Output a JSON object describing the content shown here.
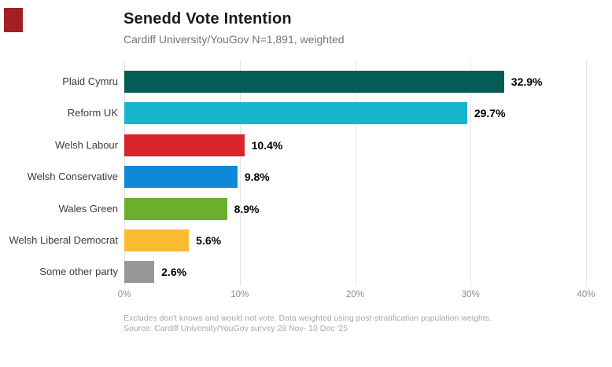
{
  "header": {
    "title": "Senedd Vote Intention",
    "subtitle": "Cardiff University/YouGov N=1,891, weighted"
  },
  "logo": {
    "name": "red-square-logo-mark",
    "color": "#A32022"
  },
  "chart_data": {
    "type": "bar",
    "orientation": "horizontal",
    "title": "Senedd Vote Intention",
    "subtitle": "Cardiff University/YouGov N=1,891, weighted",
    "categories": [
      "Plaid Cymru",
      "Reform UK",
      "Welsh Labour",
      "Welsh Conservative",
      "Wales Green",
      "Welsh Liberal Democrat",
      "Some other party"
    ],
    "values": [
      32.9,
      29.7,
      10.4,
      9.8,
      8.9,
      5.6,
      2.6
    ],
    "value_labels": [
      "32.9%",
      "29.7%",
      "10.4%",
      "9.8%",
      "8.9%",
      "5.6%",
      "2.6%"
    ],
    "bar_colors": [
      "#055C54",
      "#17B4CE",
      "#D8252B",
      "#0E89D7",
      "#6BB02D",
      "#FBBB32",
      "#979797"
    ],
    "x_axis": {
      "max": 40,
      "ticks": [
        0,
        10,
        20,
        30,
        40
      ],
      "tick_labels": [
        "0%",
        "10%",
        "20%",
        "30%",
        "40%"
      ]
    },
    "grid": "vertical-gridlines-on",
    "legend": "none",
    "xlabel": "",
    "ylabel": ""
  },
  "footer": {
    "line1": "Excludes don't knows and would not vote. Data weighted using post-stratification population weights.",
    "line2": "Source: Cardiff University/YouGov survey 28 Nov- 10 Dec '25"
  }
}
